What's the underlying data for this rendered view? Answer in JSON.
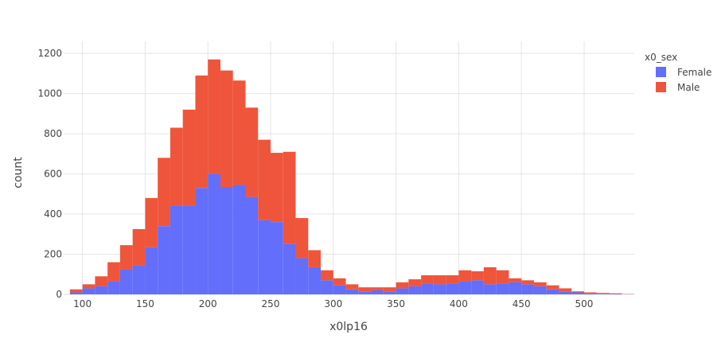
{
  "chart_data": {
    "type": "bar",
    "stacking": "stacked",
    "xlabel": "x0lp16",
    "ylabel": "count",
    "xlim": [
      85,
      540
    ],
    "ylim": [
      0,
      1260
    ],
    "bin_width": 10,
    "x_ticks": [
      100,
      150,
      200,
      250,
      300,
      350,
      400,
      450,
      500
    ],
    "y_ticks": [
      0,
      200,
      400,
      600,
      800,
      1000,
      1200
    ],
    "grid": true,
    "legend": {
      "title": "x0_sex",
      "position": "right"
    },
    "bin_starts": [
      90,
      100,
      110,
      120,
      130,
      140,
      150,
      160,
      170,
      180,
      190,
      200,
      210,
      220,
      230,
      240,
      250,
      260,
      270,
      280,
      290,
      300,
      310,
      320,
      330,
      340,
      350,
      360,
      370,
      380,
      390,
      400,
      410,
      420,
      430,
      440,
      450,
      460,
      470,
      480,
      490,
      500,
      510,
      520,
      530
    ],
    "series": [
      {
        "name": "Female",
        "color": "#636efa",
        "values": [
          10,
          30,
          40,
          65,
          125,
          145,
          235,
          340,
          440,
          440,
          530,
          600,
          535,
          545,
          485,
          370,
          360,
          250,
          180,
          135,
          70,
          45,
          25,
          15,
          20,
          15,
          30,
          40,
          55,
          50,
          55,
          65,
          70,
          50,
          55,
          60,
          50,
          40,
          25,
          15,
          10,
          5,
          3,
          2,
          1
        ]
      },
      {
        "name": "Male",
        "color": "#ef553b",
        "values": [
          15,
          20,
          50,
          95,
          120,
          180,
          245,
          340,
          390,
          480,
          560,
          570,
          580,
          520,
          445,
          400,
          345,
          460,
          200,
          85,
          50,
          35,
          25,
          20,
          15,
          20,
          30,
          35,
          40,
          45,
          40,
          55,
          45,
          85,
          65,
          20,
          20,
          20,
          20,
          15,
          5,
          5,
          4,
          3,
          1
        ]
      }
    ]
  }
}
